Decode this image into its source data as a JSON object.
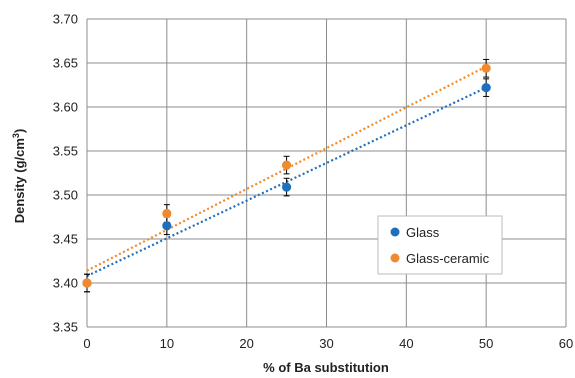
{
  "chart_data": {
    "type": "scatter",
    "title": "",
    "xlabel": "% of Ba substitution",
    "ylabel_main": "Density (g/cm",
    "ylabel_sup": "3",
    "ylabel_end": ")",
    "xlim": [
      0,
      60
    ],
    "ylim": [
      3.35,
      3.7
    ],
    "x_ticks": [
      0,
      10,
      20,
      30,
      40,
      50,
      60
    ],
    "y_ticks": [
      3.35,
      3.4,
      3.45,
      3.5,
      3.55,
      3.6,
      3.65,
      3.7
    ],
    "x_tick_labels": [
      "0",
      "10",
      "20",
      "30",
      "40",
      "50",
      "60"
    ],
    "y_tick_labels": [
      "3.35",
      "3.40",
      "3.45",
      "3.50",
      "3.55",
      "3.60",
      "3.65",
      "3.70"
    ],
    "grid": true,
    "legend_position": "right",
    "series": [
      {
        "name": "Glass",
        "color": "#1f6fbf",
        "points": [
          {
            "x": 0,
            "y": 3.4,
            "err": 0.01
          },
          {
            "x": 10,
            "y": 3.465,
            "err": 0.01
          },
          {
            "x": 25,
            "y": 3.509,
            "err": 0.01
          },
          {
            "x": 50,
            "y": 3.622,
            "err": 0.01
          }
        ],
        "trendline": {
          "x": [
            0,
            50
          ],
          "y": [
            3.408,
            3.622
          ]
        }
      },
      {
        "name": "Glass-ceramic",
        "color": "#f08a2c",
        "points": [
          {
            "x": 0,
            "y": 3.4,
            "err": 0.01
          },
          {
            "x": 10,
            "y": 3.479,
            "err": 0.01
          },
          {
            "x": 25,
            "y": 3.534,
            "err": 0.01
          },
          {
            "x": 50,
            "y": 3.644,
            "err": 0.01
          }
        ],
        "trendline": {
          "x": [
            0,
            50
          ],
          "y": [
            3.414,
            3.646
          ]
        }
      }
    ]
  }
}
